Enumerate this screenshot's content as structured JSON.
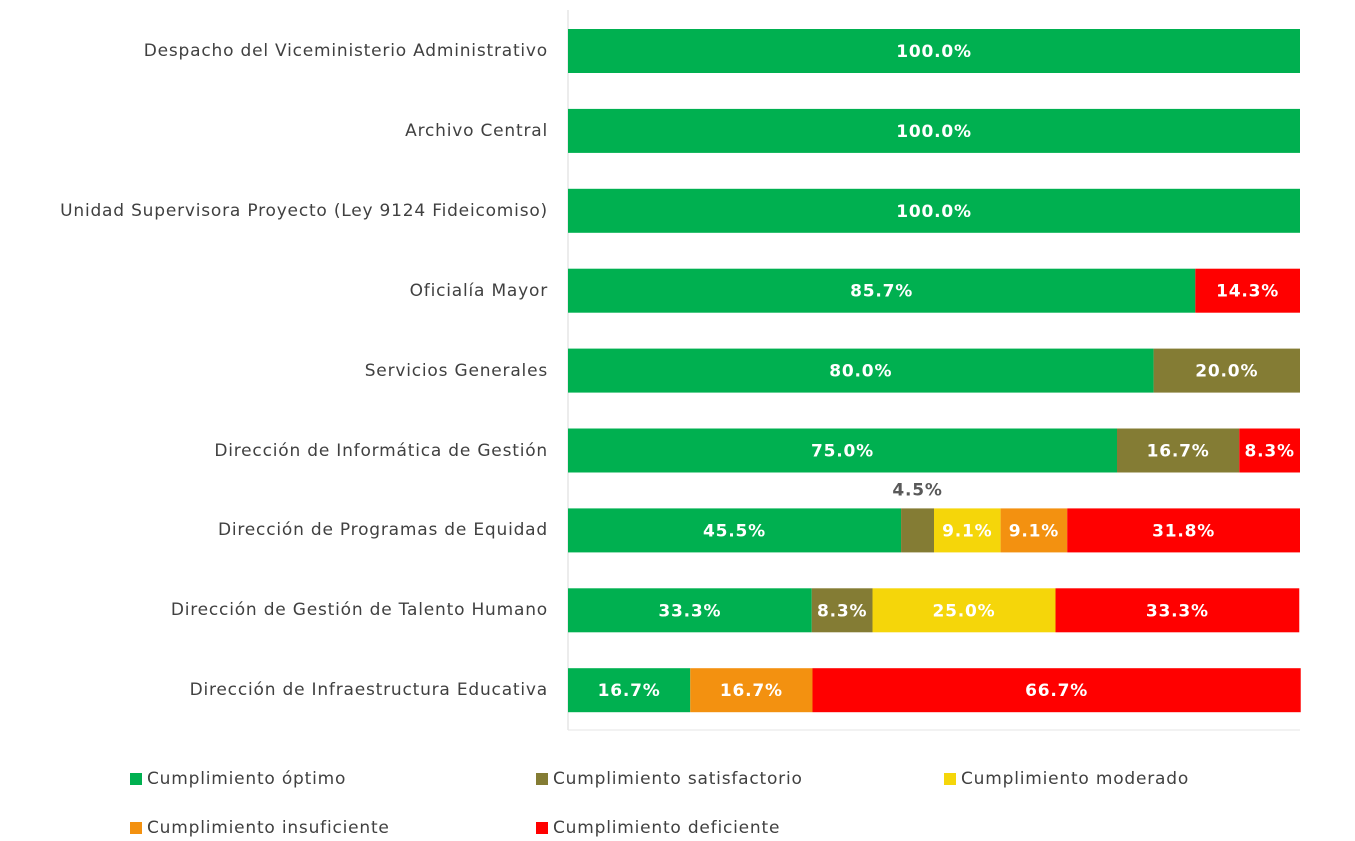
{
  "chart_data": {
    "type": "stacked_bar_horizontal",
    "categories": [
      "Despacho del Viceministerio Administrativo",
      "Archivo Central",
      "Unidad Supervisora Proyecto (Ley 9124 Fideicomiso)",
      "Oficialía Mayor",
      "Servicios Generales",
      "Dirección de Informática de Gestión",
      "Dirección de Programas de Equidad",
      "Dirección de Gestión de Talento Humano",
      "Dirección de Infraestructura Educativa"
    ],
    "xlim": [
      0,
      100
    ],
    "series": [
      {
        "name": "Cumplimiento óptimo",
        "color": "#00b050",
        "values": [
          100,
          100,
          100,
          85.7,
          80,
          75,
          45.5,
          33.3,
          16.7
        ],
        "value_labels": [
          "100.0%",
          "100.0%",
          "100.0%",
          "85.7%",
          "80.0%",
          "75.0%",
          "45.5%",
          "33.3%",
          "16.7%"
        ]
      },
      {
        "name": "Cumplimiento satisfactorio",
        "color": "#847c34",
        "values": [
          null,
          null,
          null,
          null,
          20,
          16.7,
          4.5,
          8.3,
          null
        ],
        "value_labels": [
          null,
          null,
          null,
          null,
          "20.0%",
          "16.7%",
          "4.5%",
          "8.3%",
          null
        ]
      },
      {
        "name": "Cumplimiento moderado",
        "color": "#f5d60a",
        "values": [
          null,
          null,
          null,
          null,
          null,
          null,
          9.1,
          25,
          null
        ],
        "value_labels": [
          null,
          null,
          null,
          null,
          null,
          null,
          "9.1%",
          "25.0%",
          null
        ]
      },
      {
        "name": "Cumplimiento insuficiente",
        "color": "#f39110",
        "values": [
          null,
          null,
          null,
          null,
          null,
          null,
          9.1,
          null,
          16.7
        ],
        "value_labels": [
          null,
          null,
          null,
          null,
          null,
          null,
          "9.1%",
          null,
          "16.7%"
        ]
      },
      {
        "name": "Cumplimiento deficiente",
        "color": "#ff0000",
        "values": [
          null,
          null,
          null,
          14.3,
          null,
          8.3,
          31.8,
          33.3,
          66.7
        ],
        "value_labels": [
          null,
          null,
          null,
          "14.3%",
          null,
          "8.3%",
          "31.8%",
          "33.3%",
          "66.7%"
        ]
      }
    ]
  }
}
